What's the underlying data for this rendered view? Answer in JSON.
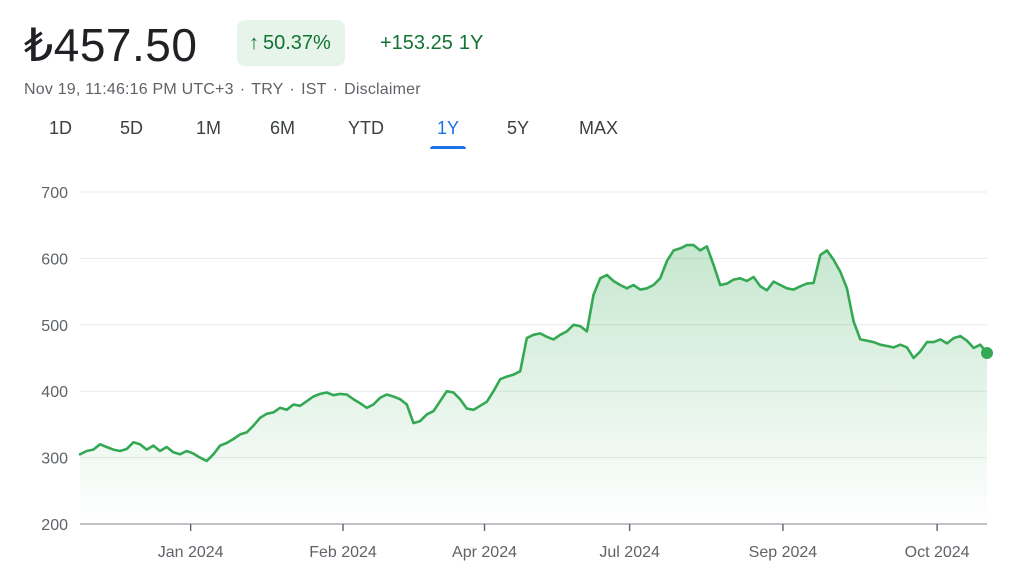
{
  "quote": {
    "price": "₺457.50",
    "change_arrow": "↑",
    "change_pct": "50.37%",
    "change_abs": "+153.25",
    "change_period": "1Y",
    "timestamp": "Nov 19, 11:46:16 PM UTC+3",
    "currency": "TRY",
    "exchange": "IST",
    "disclaimer": "Disclaimer",
    "sep": "·"
  },
  "tabs": [
    {
      "label": "1D",
      "active": false
    },
    {
      "label": "5D",
      "active": false
    },
    {
      "label": "1M",
      "active": false
    },
    {
      "label": "6M",
      "active": false
    },
    {
      "label": "YTD",
      "active": false
    },
    {
      "label": "1Y",
      "active": true
    },
    {
      "label": "5Y",
      "active": false
    },
    {
      "label": "MAX",
      "active": false
    }
  ],
  "colors": {
    "line": "#34a853",
    "fill_top": "#34a853",
    "grid": "#e8eaed",
    "axis": "#5f6368",
    "pill_bg": "#e6f4ea",
    "positive_text": "#137333"
  },
  "chart_data": {
    "type": "area",
    "title": "",
    "xlabel": "",
    "ylabel": "",
    "ylim": [
      200,
      700
    ],
    "yticks": [
      "200",
      "300",
      "400",
      "500",
      "600",
      "700"
    ],
    "xticks": [
      {
        "label": "Jan 2024",
        "t": 0.122
      },
      {
        "label": "Feb 2024",
        "t": 0.29
      },
      {
        "label": "Apr 2024",
        "t": 0.446
      },
      {
        "label": "Jul 2024",
        "t": 0.606
      },
      {
        "label": "Sep 2024",
        "t": 0.775
      },
      {
        "label": "Oct 2024",
        "t": 0.945
      }
    ],
    "grid": true,
    "last_point_marker": true,
    "series": [
      {
        "values": [
          305,
          310,
          312,
          320,
          316,
          312,
          310,
          313,
          323,
          320,
          312,
          318,
          310,
          316,
          308,
          305,
          310,
          306,
          300,
          295,
          305,
          318,
          322,
          328,
          335,
          338,
          348,
          360,
          366,
          368,
          375,
          372,
          380,
          378,
          385,
          392,
          396,
          398,
          394,
          396,
          395,
          388,
          382,
          375,
          380,
          390,
          395,
          392,
          388,
          380,
          352,
          355,
          365,
          370,
          385,
          400,
          398,
          388,
          374,
          372,
          378,
          384,
          400,
          418,
          422,
          425,
          430,
          480,
          485,
          487,
          482,
          478,
          485,
          490,
          500,
          498,
          490,
          545,
          570,
          575,
          566,
          560,
          555,
          560,
          553,
          555,
          560,
          570,
          596,
          612,
          615,
          620,
          620,
          612,
          618,
          590,
          560,
          562,
          568,
          570,
          566,
          572,
          558,
          552,
          565,
          560,
          555,
          553,
          558,
          562,
          563,
          605,
          612,
          598,
          580,
          555,
          505,
          478,
          476,
          474,
          470,
          468,
          466,
          470,
          466,
          450,
          460,
          474,
          474,
          478,
          472,
          480,
          483,
          476,
          465,
          470,
          457.5
        ]
      }
    ]
  }
}
